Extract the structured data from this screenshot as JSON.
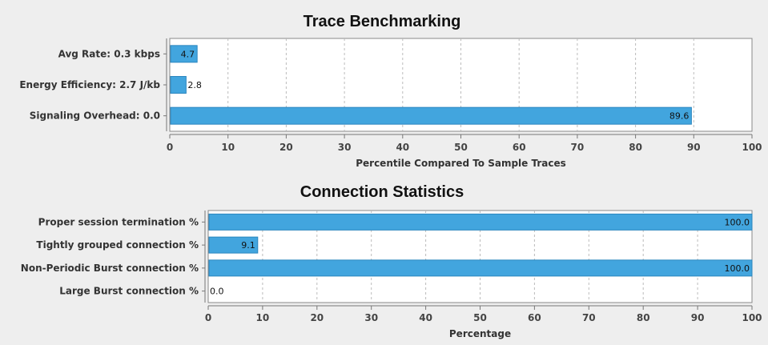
{
  "chart_data": [
    {
      "type": "bar",
      "orientation": "horizontal",
      "title": "Trace Benchmarking",
      "xlabel": "Percentile Compared To Sample Traces",
      "ylabel": "",
      "xlim": [
        0,
        100
      ],
      "ticks": [
        0,
        10,
        20,
        30,
        40,
        50,
        60,
        70,
        80,
        90,
        100
      ],
      "grid": true,
      "categories": [
        "Avg Rate: 0.3 kbps",
        "Energy Efficiency: 2.7 J/kb",
        "Signaling Overhead: 0.0"
      ],
      "values": [
        4.7,
        2.8,
        89.6
      ],
      "data_labels": [
        "4.7",
        "2.8",
        "89.6"
      ],
      "bar_color": "#42a5de"
    },
    {
      "type": "bar",
      "orientation": "horizontal",
      "title": "Connection Statistics",
      "xlabel": "Percentage",
      "ylabel": "",
      "xlim": [
        0,
        100
      ],
      "ticks": [
        0,
        10,
        20,
        30,
        40,
        50,
        60,
        70,
        80,
        90,
        100
      ],
      "grid": true,
      "categories": [
        "Proper session termination %",
        "Tightly grouped connection %",
        "Non-Periodic Burst connection %",
        "Large Burst connection %"
      ],
      "values": [
        100.0,
        9.1,
        100.0,
        0.0
      ],
      "data_labels": [
        "100.0",
        "9.1",
        "100.0",
        "0.0"
      ],
      "bar_color": "#42a5de"
    }
  ]
}
